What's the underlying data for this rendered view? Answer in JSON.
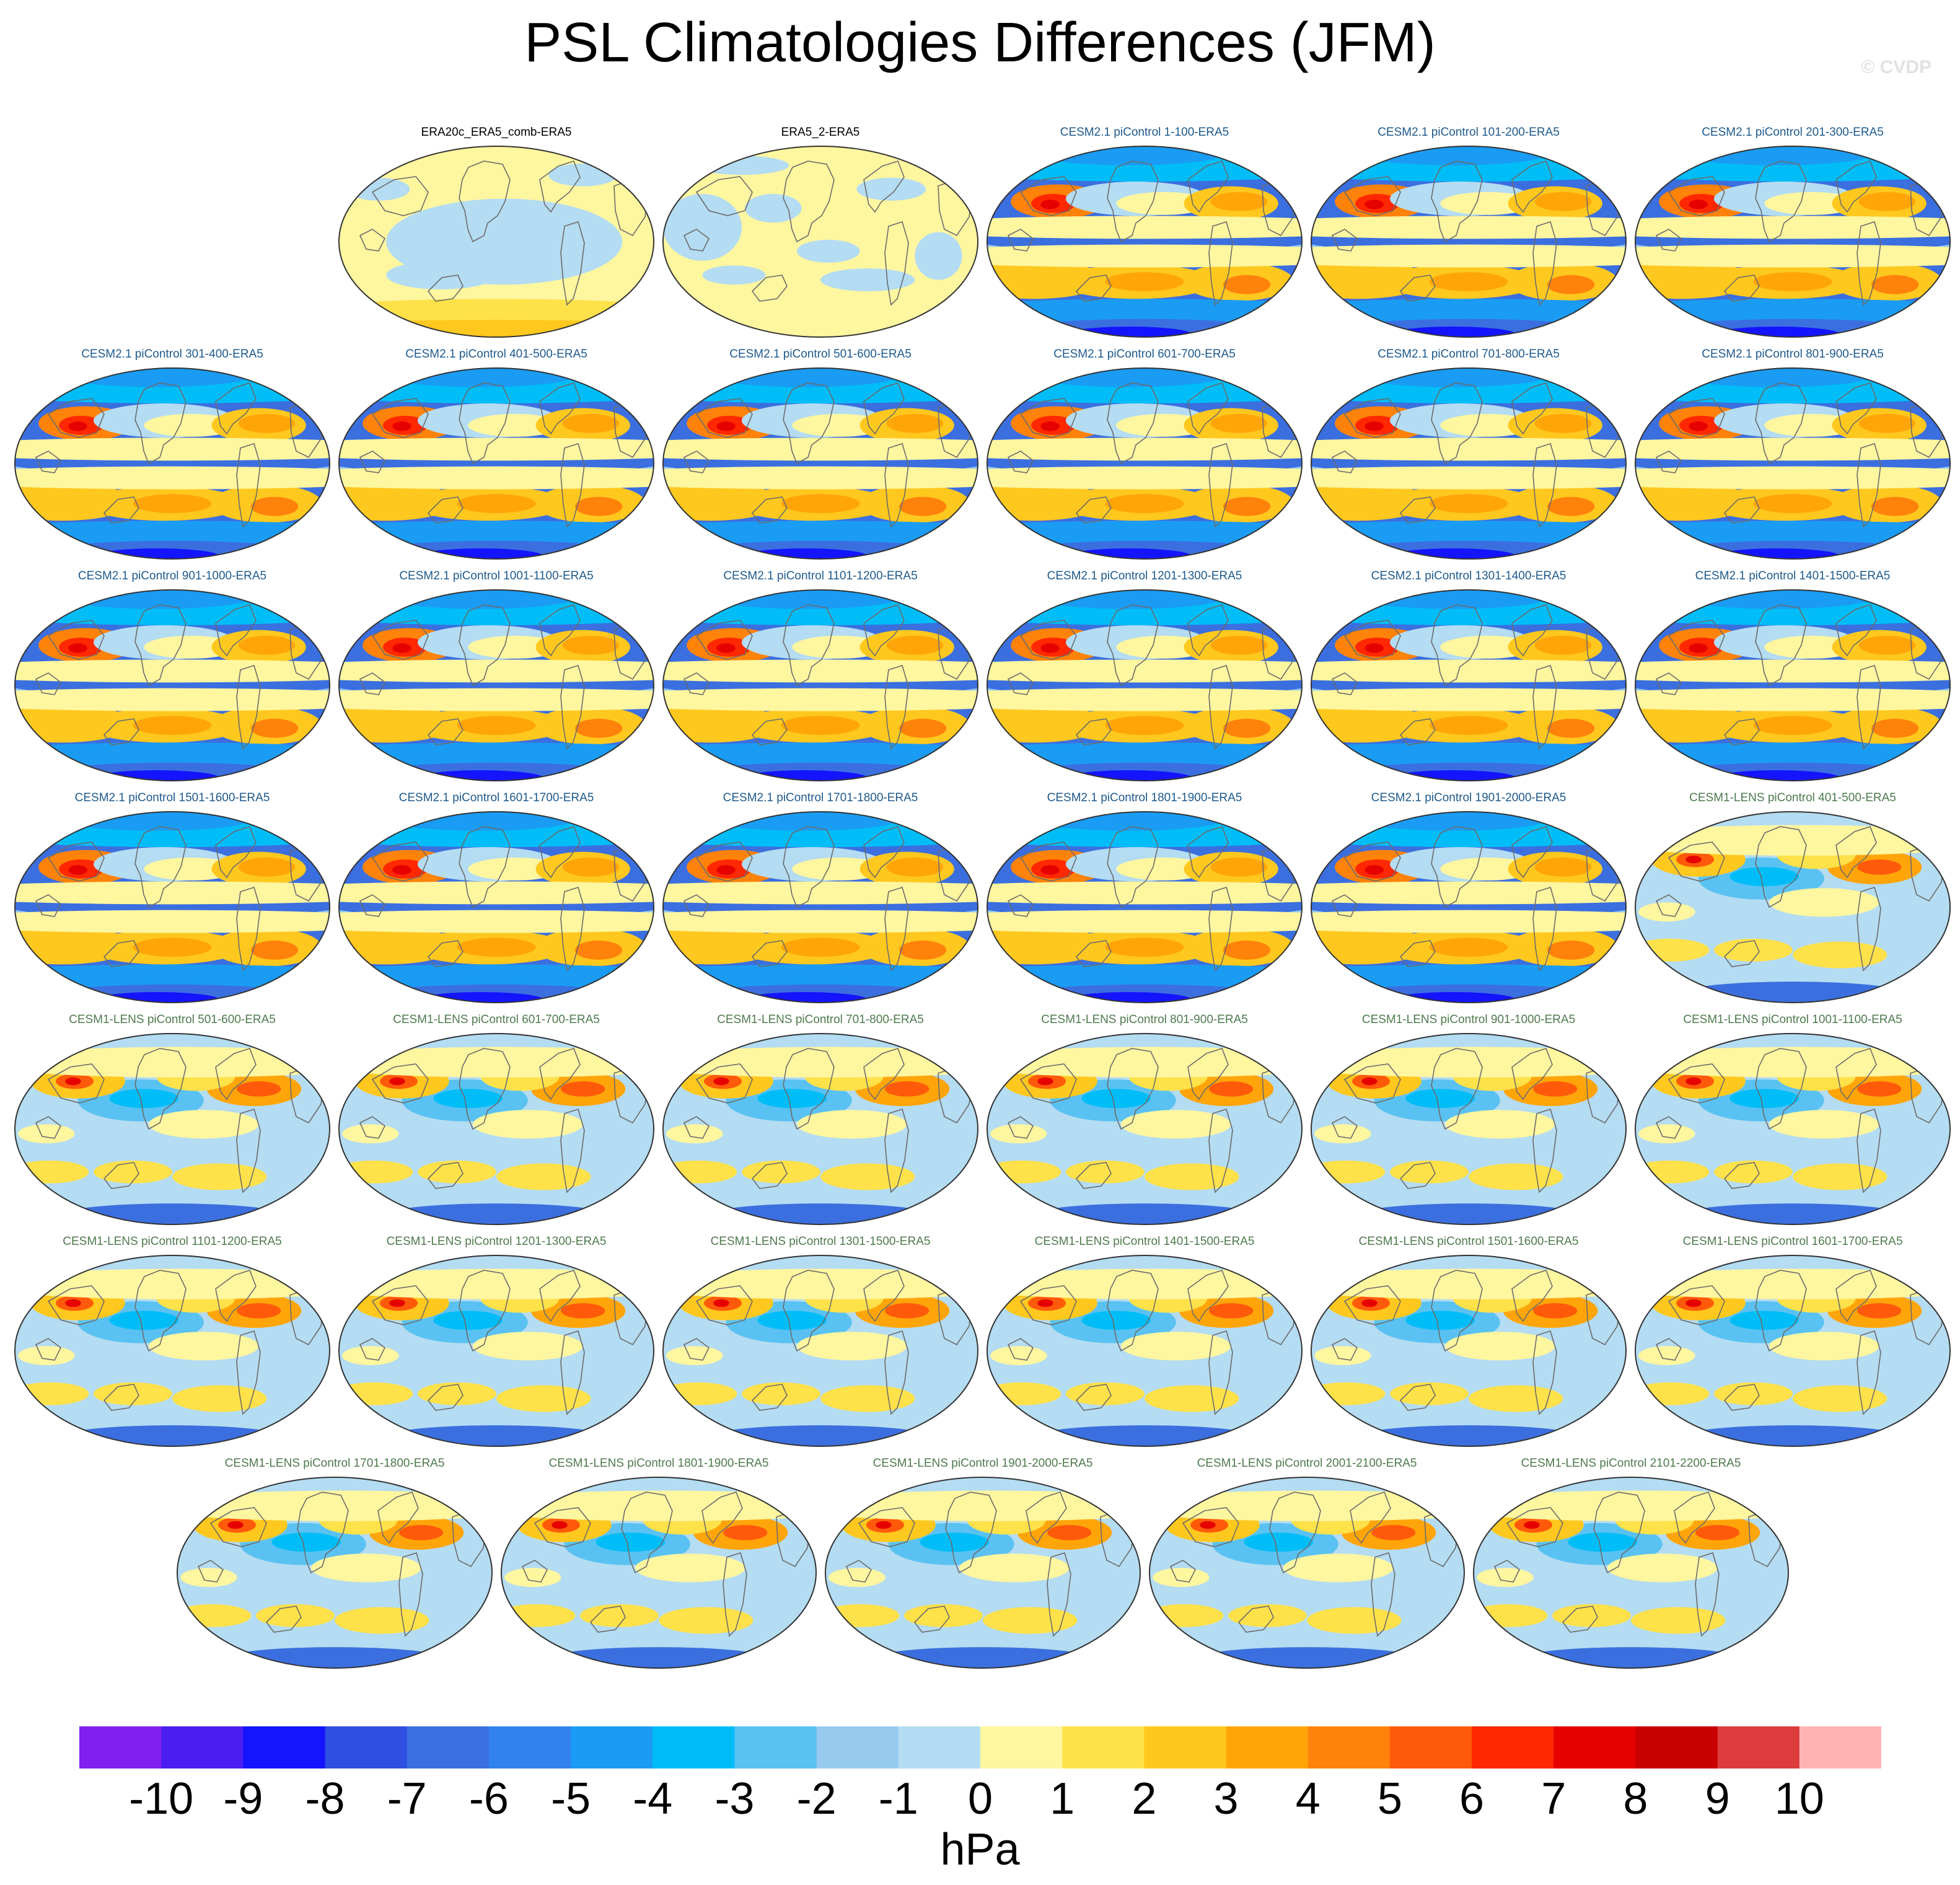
{
  "title": "PSL Climatologies Differences (JFM)",
  "watermark": "© CVDP",
  "chart_data": {
    "type": "heatmap",
    "description": "Grid of global map panels of sea level pressure climatology differences vs ERA5",
    "units": "hPa",
    "colorbar": {
      "boundaries": [
        -10,
        -9,
        -8,
        -7,
        -6,
        -5,
        -4,
        -3,
        -2,
        -1,
        0,
        1,
        2,
        3,
        4,
        5,
        6,
        7,
        8,
        9,
        10
      ],
      "tick_labels": [
        "-10",
        "-9",
        "-8",
        "-7",
        "-6",
        "-5",
        "-4",
        "-3",
        "-2",
        "-1",
        "0",
        "1",
        "2",
        "3",
        "4",
        "5",
        "6",
        "7",
        "8",
        "9",
        "10"
      ],
      "colors": [
        "#7f1ff0",
        "#4a1ef0",
        "#1414ff",
        "#2e4fe0",
        "#3b6fdf",
        "#3282ee",
        "#1a9cf4",
        "#00bdf8",
        "#5ac2f2",
        "#96caee",
        "#b4dcf2",
        "#fff6a0",
        "#ffe14a",
        "#ffc81e",
        "#ffa50a",
        "#ff820a",
        "#ff5a0a",
        "#ff2800",
        "#e60000",
        "#c80000",
        "#dc3c3c",
        "#ffb4b4"
      ]
    },
    "panels": [
      {
        "label": "ERA20c_ERA5_comb-ERA5",
        "group": "obs",
        "pattern": "era20c"
      },
      {
        "label": "ERA5_2-ERA5",
        "group": "obs",
        "pattern": "era5"
      },
      {
        "label": "CESM2.1 piControl 1-100-ERA5",
        "group": "cesm2",
        "pattern": "cesm2"
      },
      {
        "label": "CESM2.1 piControl 101-200-ERA5",
        "group": "cesm2",
        "pattern": "cesm2"
      },
      {
        "label": "CESM2.1 piControl 201-300-ERA5",
        "group": "cesm2",
        "pattern": "cesm2"
      },
      {
        "label": "CESM2.1 piControl 301-400-ERA5",
        "group": "cesm2",
        "pattern": "cesm2"
      },
      {
        "label": "CESM2.1 piControl 401-500-ERA5",
        "group": "cesm2",
        "pattern": "cesm2"
      },
      {
        "label": "CESM2.1 piControl 501-600-ERA5",
        "group": "cesm2",
        "pattern": "cesm2"
      },
      {
        "label": "CESM2.1 piControl 601-700-ERA5",
        "group": "cesm2",
        "pattern": "cesm2"
      },
      {
        "label": "CESM2.1 piControl 701-800-ERA5",
        "group": "cesm2",
        "pattern": "cesm2"
      },
      {
        "label": "CESM2.1 piControl 801-900-ERA5",
        "group": "cesm2",
        "pattern": "cesm2"
      },
      {
        "label": "CESM2.1 piControl 901-1000-ERA5",
        "group": "cesm2",
        "pattern": "cesm2"
      },
      {
        "label": "CESM2.1 piControl 1001-1100-ERA5",
        "group": "cesm2",
        "pattern": "cesm2"
      },
      {
        "label": "CESM2.1 piControl 1101-1200-ERA5",
        "group": "cesm2",
        "pattern": "cesm2"
      },
      {
        "label": "CESM2.1 piControl 1201-1300-ERA5",
        "group": "cesm2",
        "pattern": "cesm2"
      },
      {
        "label": "CESM2.1 piControl 1301-1400-ERA5",
        "group": "cesm2",
        "pattern": "cesm2"
      },
      {
        "label": "CESM2.1 piControl 1401-1500-ERA5",
        "group": "cesm2",
        "pattern": "cesm2"
      },
      {
        "label": "CESM2.1 piControl 1501-1600-ERA5",
        "group": "cesm2",
        "pattern": "cesm2"
      },
      {
        "label": "CESM2.1 piControl 1601-1700-ERA5",
        "group": "cesm2",
        "pattern": "cesm2"
      },
      {
        "label": "CESM2.1 piControl 1701-1800-ERA5",
        "group": "cesm2",
        "pattern": "cesm2"
      },
      {
        "label": "CESM2.1 piControl 1801-1900-ERA5",
        "group": "cesm2",
        "pattern": "cesm2"
      },
      {
        "label": "CESM2.1 piControl 1901-2000-ERA5",
        "group": "cesm2",
        "pattern": "cesm2"
      },
      {
        "label": "CESM1-LENS piControl 401-500-ERA5",
        "group": "lens",
        "pattern": "lens"
      },
      {
        "label": "CESM1-LENS piControl 501-600-ERA5",
        "group": "lens",
        "pattern": "lens"
      },
      {
        "label": "CESM1-LENS piControl 601-700-ERA5",
        "group": "lens",
        "pattern": "lens"
      },
      {
        "label": "CESM1-LENS piControl 701-800-ERA5",
        "group": "lens",
        "pattern": "lens"
      },
      {
        "label": "CESM1-LENS piControl 801-900-ERA5",
        "group": "lens",
        "pattern": "lens"
      },
      {
        "label": "CESM1-LENS piControl 901-1000-ERA5",
        "group": "lens",
        "pattern": "lens"
      },
      {
        "label": "CESM1-LENS piControl 1001-1100-ERA5",
        "group": "lens",
        "pattern": "lens"
      },
      {
        "label": "CESM1-LENS piControl 1101-1200-ERA5",
        "group": "lens",
        "pattern": "lens"
      },
      {
        "label": "CESM1-LENS piControl 1201-1300-ERA5",
        "group": "lens",
        "pattern": "lens"
      },
      {
        "label": "CESM1-LENS piControl 1301-1500-ERA5",
        "group": "lens",
        "pattern": "lens"
      },
      {
        "label": "CESM1-LENS piControl 1401-1500-ERA5",
        "group": "lens",
        "pattern": "lens"
      },
      {
        "label": "CESM1-LENS piControl 1501-1600-ERA5",
        "group": "lens",
        "pattern": "lens"
      },
      {
        "label": "CESM1-LENS piControl 1601-1700-ERA5",
        "group": "lens",
        "pattern": "lens"
      },
      {
        "label": "CESM1-LENS piControl 1701-1800-ERA5",
        "group": "lens",
        "pattern": "lens"
      },
      {
        "label": "CESM1-LENS piControl 1801-1900-ERA5",
        "group": "lens",
        "pattern": "lens"
      },
      {
        "label": "CESM1-LENS piControl 1901-2000-ERA5",
        "group": "lens",
        "pattern": "lens"
      },
      {
        "label": "CESM1-LENS piControl 2001-2100-ERA5",
        "group": "lens",
        "pattern": "lens"
      },
      {
        "label": "CESM1-LENS piControl 2101-2200-ERA5",
        "group": "lens",
        "pattern": "lens"
      }
    ]
  }
}
